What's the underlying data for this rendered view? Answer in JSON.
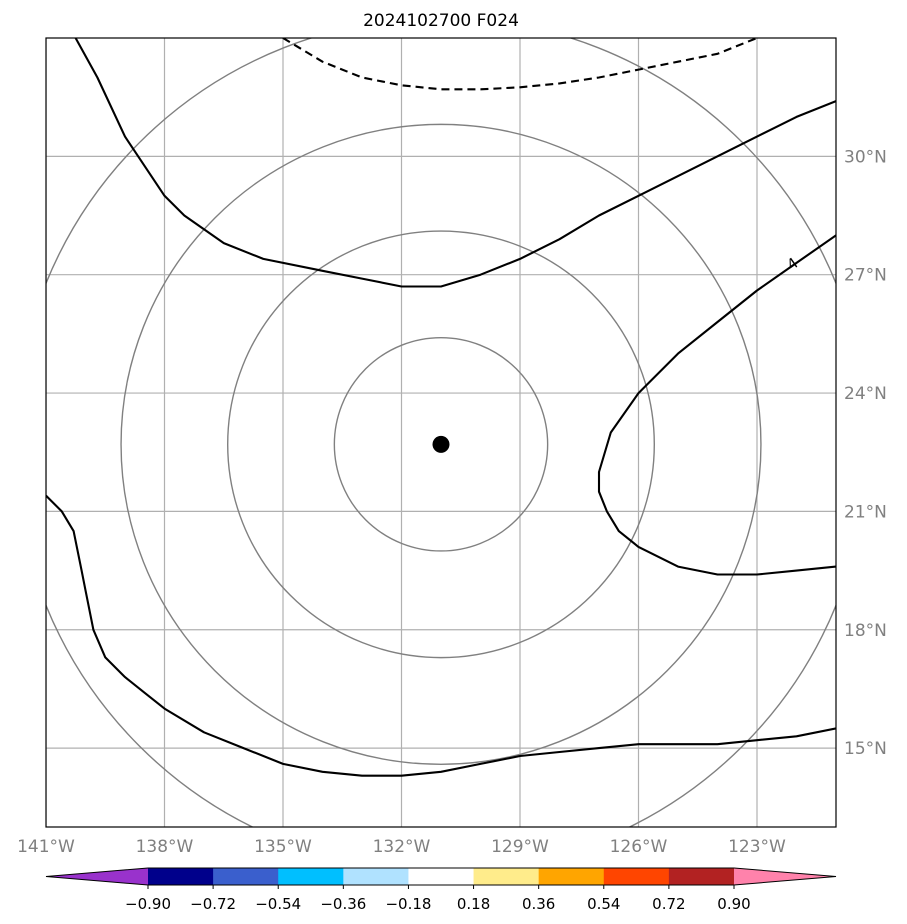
{
  "chart_data": {
    "type": "map",
    "title": "2024102700 F024",
    "projection": "cylindrical lon-lat",
    "lon_range": [
      -141,
      -121
    ],
    "lat_range": [
      13,
      33
    ],
    "grid": true,
    "x_ticks": [
      {
        "value": -141,
        "label": "141°W"
      },
      {
        "value": -138,
        "label": "138°W"
      },
      {
        "value": -135,
        "label": "135°W"
      },
      {
        "value": -132,
        "label": "132°W"
      },
      {
        "value": -129,
        "label": "129°W"
      },
      {
        "value": -126,
        "label": "126°W"
      },
      {
        "value": -123,
        "label": "123°W"
      }
    ],
    "y_ticks": [
      {
        "value": 15,
        "label": "15°N"
      },
      {
        "value": 18,
        "label": "18°N"
      },
      {
        "value": 21,
        "label": "21°N"
      },
      {
        "value": 24,
        "label": "24°N"
      },
      {
        "value": 27,
        "label": "27°N"
      },
      {
        "value": 30,
        "label": "30°N"
      }
    ],
    "center": {
      "lon": -131,
      "lat": 22.7
    },
    "range_rings": [
      {
        "radius_deg": 2.7
      },
      {
        "radius_deg": 5.4
      },
      {
        "radius_deg": 8.1
      },
      {
        "radius_deg": 10.8
      }
    ],
    "contours": [
      {
        "style": "solid",
        "points": [
          [
            -140.25,
            33.0
          ],
          [
            -139.7,
            32.0
          ],
          [
            -139.0,
            30.5
          ],
          [
            -138.0,
            29.0
          ],
          [
            -137.5,
            28.5
          ],
          [
            -136.5,
            27.8
          ],
          [
            -135.5,
            27.4
          ],
          [
            -134.0,
            27.1
          ],
          [
            -133.0,
            26.9
          ],
          [
            -132.0,
            26.7
          ],
          [
            -131.0,
            26.7
          ],
          [
            -130.0,
            27.0
          ],
          [
            -129.0,
            27.4
          ],
          [
            -128.0,
            27.9
          ],
          [
            -127.0,
            28.5
          ],
          [
            -126.0,
            29.0
          ],
          [
            -125.0,
            29.5
          ],
          [
            -124.0,
            30.0
          ],
          [
            -123.0,
            30.5
          ],
          [
            -122.0,
            31.0
          ],
          [
            -121.0,
            31.4
          ]
        ]
      },
      {
        "style": "solid",
        "label": "4",
        "points": [
          [
            -121.0,
            28.0
          ],
          [
            -122.0,
            27.3
          ],
          [
            -123.0,
            26.6
          ],
          [
            -124.0,
            25.8
          ],
          [
            -125.0,
            25.0
          ],
          [
            -126.0,
            24.0
          ],
          [
            -126.7,
            23.0
          ],
          [
            -127.0,
            22.0
          ],
          [
            -127.0,
            21.5
          ],
          [
            -126.8,
            21.0
          ],
          [
            -126.5,
            20.5
          ],
          [
            -126.0,
            20.1
          ],
          [
            -125.0,
            19.6
          ],
          [
            -124.0,
            19.4
          ],
          [
            -123.0,
            19.4
          ],
          [
            -122.0,
            19.5
          ],
          [
            -121.0,
            19.6
          ]
        ]
      },
      {
        "style": "solid",
        "points": [
          [
            -141.0,
            21.4
          ],
          [
            -140.6,
            21.0
          ],
          [
            -140.3,
            20.5
          ],
          [
            -140.1,
            19.5
          ],
          [
            -140.0,
            19.0
          ],
          [
            -139.8,
            18.0
          ],
          [
            -139.5,
            17.3
          ],
          [
            -139.0,
            16.8
          ],
          [
            -138.5,
            16.4
          ],
          [
            -138.0,
            16.0
          ],
          [
            -137.0,
            15.4
          ],
          [
            -136.0,
            15.0
          ],
          [
            -135.0,
            14.6
          ],
          [
            -134.0,
            14.4
          ],
          [
            -133.0,
            14.3
          ],
          [
            -132.0,
            14.3
          ],
          [
            -131.0,
            14.4
          ],
          [
            -130.0,
            14.6
          ],
          [
            -129.0,
            14.8
          ],
          [
            -128.0,
            14.9
          ],
          [
            -127.0,
            15.0
          ],
          [
            -126.0,
            15.1
          ],
          [
            -124.0,
            15.1
          ],
          [
            -123.0,
            15.2
          ],
          [
            -122.0,
            15.3
          ],
          [
            -121.0,
            15.5
          ]
        ]
      },
      {
        "style": "dashed",
        "points": [
          [
            -135.0,
            33.0
          ],
          [
            -134.0,
            32.4
          ],
          [
            -133.0,
            32.0
          ],
          [
            -132.0,
            31.8
          ],
          [
            -131.0,
            31.7
          ],
          [
            -130.0,
            31.7
          ],
          [
            -129.0,
            31.75
          ],
          [
            -128.0,
            31.85
          ],
          [
            -127.0,
            32.0
          ],
          [
            -126.0,
            32.2
          ],
          [
            -125.0,
            32.4
          ],
          [
            -124.0,
            32.6
          ],
          [
            -123.0,
            33.0
          ]
        ]
      }
    ],
    "colorbar": {
      "ticks": [
        "−0.90",
        "−0.72",
        "−0.54",
        "−0.36",
        "−0.18",
        "0.18",
        "0.36",
        "0.54",
        "0.72",
        "0.90"
      ],
      "colors": [
        "#9932cc",
        "#00008b",
        "#3a5fcd",
        "#00bfff",
        "#b0e2ff",
        "#ffffff",
        "#ffec8b",
        "#ffa500",
        "#ff4500",
        "#b22222",
        "#ff82ab"
      ],
      "extend": "both"
    }
  }
}
